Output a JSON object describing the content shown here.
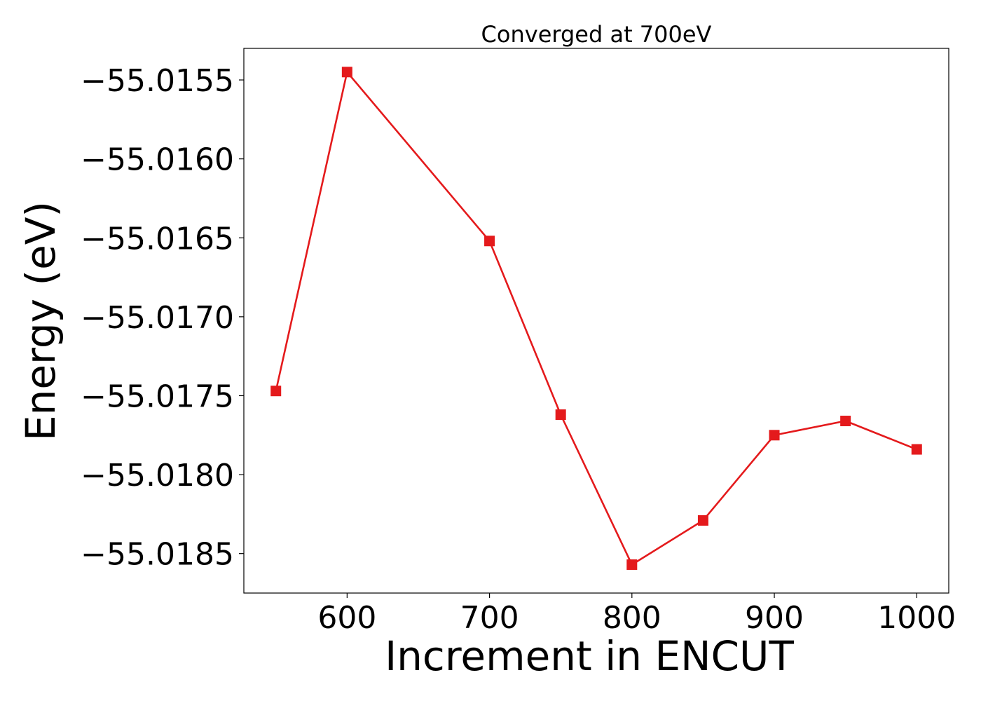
{
  "chart_data": {
    "type": "line",
    "title": "Converged at 700eV",
    "xlabel": "Increment in ENCUT",
    "ylabel": "Energy (eV)",
    "x": [
      550,
      600,
      700,
      750,
      800,
      850,
      900,
      950,
      1000
    ],
    "series": [
      {
        "values": [
          -55.01747,
          -55.01545,
          -55.01652,
          -55.01762,
          -55.01857,
          -55.01829,
          -55.01775,
          -55.01766,
          -55.01784
        ]
      }
    ],
    "xlim": [
      527.5,
      1022.5
    ],
    "ylim": [
      -55.01875,
      -55.0153
    ],
    "xticks": [
      600,
      700,
      800,
      900,
      1000
    ],
    "xtick_labels": [
      "600",
      "700",
      "800",
      "900",
      "1000"
    ],
    "yticks": [
      -55.0155,
      -55.016,
      -55.0165,
      -55.017,
      -55.0175,
      -55.018,
      -55.0185
    ],
    "ytick_labels": [
      "−55.0155",
      "−55.0160",
      "−55.0165",
      "−55.0170",
      "−55.0175",
      "−55.0180",
      "−55.0185"
    ],
    "grid": false,
    "legend": "none",
    "marker": "square",
    "line_color": "#e41a1c",
    "marker_color": "#e41a1c"
  }
}
